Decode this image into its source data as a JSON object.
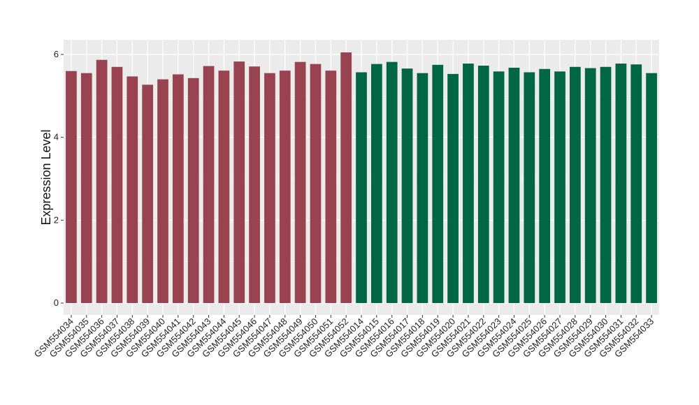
{
  "chart_data": {
    "type": "bar",
    "title": "",
    "xlabel": "",
    "ylabel": "Expression Level",
    "ylim": [
      0,
      6.05
    ],
    "yticks": [
      0,
      2,
      4,
      6
    ],
    "grid": true,
    "legend": "none",
    "panel_background": "#EBEBEB",
    "categories": [
      "GSM554034",
      "GSM554035",
      "GSM554036",
      "GSM554037",
      "GSM554038",
      "GSM554039",
      "GSM554040",
      "GSM554041",
      "GSM554042",
      "GSM554043",
      "GSM554044",
      "GSM554045",
      "GSM554046",
      "GSM554047",
      "GSM554048",
      "GSM554049",
      "GSM554050",
      "GSM554051",
      "GSM554052",
      "GSM554014",
      "GSM554015",
      "GSM554016",
      "GSM554017",
      "GSM554018",
      "GSM554019",
      "GSM554020",
      "GSM554021",
      "GSM554022",
      "GSM554023",
      "GSM554024",
      "GSM554025",
      "GSM554026",
      "GSM554027",
      "GSM554028",
      "GSM554029",
      "GSM554030",
      "GSM554031",
      "GSM554032",
      "GSM554033"
    ],
    "values": [
      5.6,
      5.55,
      5.87,
      5.7,
      5.47,
      5.27,
      5.4,
      5.52,
      5.43,
      5.72,
      5.61,
      5.83,
      5.71,
      5.55,
      5.61,
      5.82,
      5.77,
      5.61,
      6.05,
      5.57,
      5.77,
      5.82,
      5.66,
      5.55,
      5.75,
      5.53,
      5.78,
      5.73,
      5.59,
      5.68,
      5.57,
      5.65,
      5.59,
      5.7,
      5.67,
      5.7,
      5.78,
      5.76,
      5.55
    ],
    "bar_colors": [
      "#9A4350",
      "#9A4350",
      "#9A4350",
      "#9A4350",
      "#9A4350",
      "#9A4350",
      "#9A4350",
      "#9A4350",
      "#9A4350",
      "#9A4350",
      "#9A4350",
      "#9A4350",
      "#9A4350",
      "#9A4350",
      "#9A4350",
      "#9A4350",
      "#9A4350",
      "#9A4350",
      "#9A4350",
      "#006644",
      "#006644",
      "#006644",
      "#006644",
      "#006644",
      "#006644",
      "#006644",
      "#006644",
      "#006644",
      "#006644",
      "#006644",
      "#006644",
      "#006644",
      "#006644",
      "#006644",
      "#006644",
      "#006644",
      "#006644",
      "#006644",
      "#006644"
    ]
  }
}
